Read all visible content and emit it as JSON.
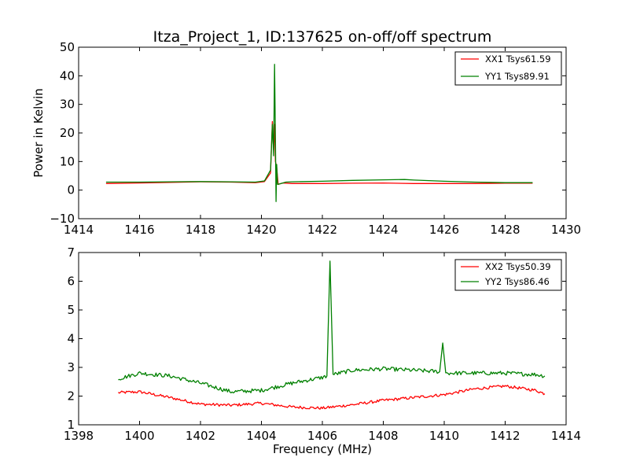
{
  "figure": {
    "title": "Itza_Project_1, ID:137625 on-off/off spectrum",
    "xlabel": "Frequency (MHz)",
    "ylabel": "Power in Kelvin"
  },
  "colors": {
    "xx": "#ff0000",
    "yy": "#008000",
    "axes": "#000000",
    "background": "#ffffff"
  },
  "chart_data": [
    {
      "type": "line",
      "title": "Itza_Project_1, ID:137625 on-off/off spectrum",
      "xlabel": "",
      "ylabel": "Power in Kelvin",
      "xlim": [
        1414,
        1430
      ],
      "ylim": [
        -10,
        50
      ],
      "xticks": [
        1414,
        1416,
        1418,
        1420,
        1422,
        1424,
        1426,
        1428,
        1430
      ],
      "yticks": [
        -10,
        0,
        10,
        20,
        30,
        40,
        50
      ],
      "xtick_labels": [
        "1414",
        "1416",
        "1418",
        "1420",
        "1422",
        "1424",
        "1426",
        "1428",
        "1430"
      ],
      "ytick_labels": [
        "−10",
        "0",
        "10",
        "20",
        "30",
        "40",
        "50"
      ],
      "grid": false,
      "legend": "top-right",
      "series": [
        {
          "name": "XX1 Tsys61.59",
          "color": "#ff0000",
          "x": [
            1414.9,
            1416,
            1417,
            1418,
            1419,
            1419.8,
            1420.1,
            1420.3,
            1420.36,
            1420.4,
            1420.43,
            1420.46,
            1420.5,
            1420.55,
            1420.7,
            1421,
            1422,
            1423,
            1424,
            1425,
            1426,
            1427,
            1428,
            1428.9
          ],
          "y": [
            2.3,
            2.5,
            2.7,
            2.9,
            2.8,
            2.6,
            3,
            6,
            24,
            14,
            23,
            10,
            8,
            2,
            2.5,
            2.3,
            2.3,
            2.4,
            2.5,
            2.3,
            2.3,
            2.3,
            2.4,
            2.4
          ]
        },
        {
          "name": "YY1 Tsys89.91",
          "color": "#008000",
          "x": [
            1414.9,
            1416,
            1417,
            1418,
            1419,
            1419.8,
            1420.1,
            1420.3,
            1420.36,
            1420.4,
            1420.43,
            1420.46,
            1420.48,
            1420.5,
            1420.53,
            1420.6,
            1420.8,
            1421,
            1422,
            1423,
            1424,
            1424.7,
            1425,
            1426,
            1427,
            1428,
            1428.9
          ],
          "y": [
            2.8,
            2.8,
            2.9,
            3,
            2.9,
            2.8,
            3.2,
            7,
            23,
            12,
            44,
            18,
            -4,
            9,
            2,
            2.2,
            2.8,
            2.9,
            3.1,
            3.4,
            3.6,
            3.7,
            3.5,
            3.1,
            2.8,
            2.6,
            2.6
          ]
        }
      ]
    },
    {
      "type": "line",
      "title": "",
      "xlabel": "Frequency (MHz)",
      "ylabel": "",
      "xlim": [
        1398,
        1414
      ],
      "ylim": [
        1,
        7
      ],
      "xticks": [
        1398,
        1400,
        1402,
        1404,
        1406,
        1408,
        1410,
        1412,
        1414
      ],
      "yticks": [
        1,
        2,
        3,
        4,
        5,
        6,
        7
      ],
      "xtick_labels": [
        "1398",
        "1400",
        "1402",
        "1404",
        "1406",
        "1408",
        "1410",
        "1412",
        "1414"
      ],
      "ytick_labels": [
        "1",
        "2",
        "3",
        "4",
        "5",
        "6",
        "7"
      ],
      "grid": false,
      "legend": "top-right",
      "series": [
        {
          "name": "XX2 Tsys50.39",
          "color": "#ff0000",
          "x": [
            1399.3,
            1400,
            1401,
            1402,
            1403,
            1404,
            1405,
            1406,
            1407,
            1408,
            1409,
            1410,
            1411,
            1412,
            1413,
            1413.3
          ],
          "y": [
            2.12,
            2.15,
            1.95,
            1.72,
            1.68,
            1.75,
            1.62,
            1.58,
            1.7,
            1.85,
            1.95,
            2.05,
            2.25,
            2.35,
            2.2,
            2.08
          ],
          "noise": 0.05
        },
        {
          "name": "YY2 Tsys86.46",
          "color": "#008000",
          "x": [
            1399.3,
            1400,
            1401,
            1402,
            1403,
            1404,
            1405,
            1406,
            1406.15,
            1406.25,
            1406.35,
            1407,
            1408,
            1409,
            1409.85,
            1409.95,
            1410.05,
            1411,
            1412,
            1413,
            1413.3
          ],
          "y": [
            2.6,
            2.8,
            2.7,
            2.45,
            2.15,
            2.2,
            2.45,
            2.65,
            2.7,
            6.7,
            2.75,
            2.9,
            2.95,
            2.9,
            2.85,
            3.85,
            2.8,
            2.8,
            2.8,
            2.75,
            2.7
          ],
          "noise": 0.07
        }
      ]
    }
  ]
}
